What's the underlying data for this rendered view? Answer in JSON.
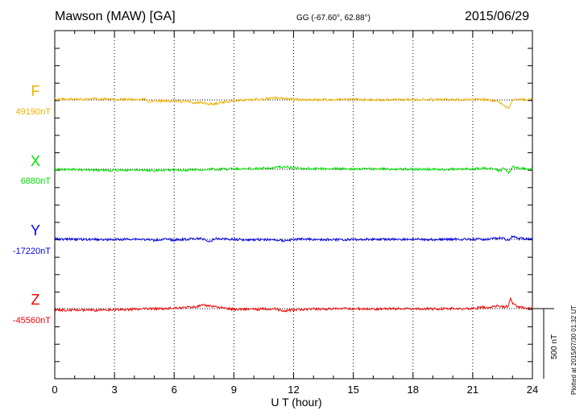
{
  "header": {
    "title": "Mawson (MAW)  [GA]",
    "coords": "GG (-67.60°,  62.88°)",
    "date": "2015/06/29",
    "plotted": "Plotted at 2015/07/30 01:32 UT"
  },
  "chart_data": {
    "type": "line",
    "title": "Mawson (MAW)  [GA]",
    "xlabel": "U T (hour)",
    "xlim": [
      0,
      24
    ],
    "xticks": [
      "0",
      "3",
      "6",
      "9",
      "12",
      "15",
      "18",
      "21",
      "24"
    ],
    "grid": "dotted vertical at each 3 hours",
    "scale_bar": {
      "label": "500 nT",
      "value_nT": 500
    },
    "series": [
      {
        "name": "F",
        "baseline_label": "49190nT",
        "baseline_nT": 49190,
        "color": "#f0b000",
        "x": [
          0,
          0.5,
          1,
          1.5,
          2,
          2.5,
          3,
          3.5,
          4,
          4.5,
          4.8,
          5,
          5.5,
          6,
          6.5,
          7,
          7.5,
          7.8,
          8,
          8.5,
          9,
          9.5,
          10,
          10.5,
          11,
          11.3,
          11.6,
          12,
          12.5,
          13,
          14,
          15,
          16,
          17,
          18,
          19,
          20,
          21,
          21.5,
          22,
          22.3,
          22.6,
          22.8,
          22.9,
          23,
          23.2,
          23.5,
          24
        ],
        "values": [
          10,
          12,
          12,
          10,
          18,
          10,
          8,
          8,
          5,
          10,
          -25,
          -20,
          -15,
          -20,
          -25,
          -35,
          -45,
          -60,
          -55,
          -30,
          -10,
          -5,
          5,
          15,
          25,
          35,
          20,
          5,
          3,
          5,
          3,
          5,
          3,
          5,
          5,
          3,
          5,
          5,
          5,
          -10,
          -30,
          -80,
          -120,
          -60,
          -10,
          5,
          5,
          3
        ]
      },
      {
        "name": "X",
        "baseline_label": "6880nT",
        "baseline_nT": 6880,
        "color": "#00e000",
        "x": [
          0,
          1,
          2,
          3,
          4,
          4.5,
          5,
          5.5,
          6,
          6.5,
          7,
          7.5,
          8,
          8.5,
          9,
          9.5,
          10,
          10.5,
          11,
          11.5,
          12,
          12.5,
          13,
          14,
          15,
          16,
          17,
          18,
          19,
          20,
          21,
          21.5,
          22,
          22.4,
          22.6,
          22.8,
          22.9,
          23,
          23.2,
          23.5,
          24
        ],
        "values": [
          0,
          -5,
          -15,
          -15,
          -10,
          -20,
          -20,
          -10,
          -10,
          -15,
          -5,
          -10,
          0,
          0,
          10,
          5,
          10,
          15,
          20,
          35,
          20,
          10,
          5,
          10,
          5,
          5,
          5,
          0,
          0,
          0,
          5,
          10,
          10,
          -20,
          20,
          -60,
          -30,
          40,
          20,
          10,
          5
        ]
      },
      {
        "name": "Y",
        "baseline_label": "-17220nT",
        "baseline_nT": -17220,
        "color": "#0000e0",
        "x": [
          0,
          1,
          2,
          3,
          4,
          5,
          5.5,
          6,
          6.5,
          7,
          7.5,
          7.8,
          8,
          8.5,
          9,
          9.5,
          10,
          10.5,
          11,
          11.5,
          11.8,
          12,
          12.5,
          13,
          14,
          15,
          16,
          17,
          18,
          19,
          20,
          21,
          21.5,
          22,
          22.5,
          22.8,
          23,
          23.3,
          23.6,
          24
        ],
        "values": [
          5,
          0,
          0,
          -5,
          5,
          -10,
          0,
          -10,
          0,
          10,
          5,
          -40,
          10,
          5,
          0,
          -5,
          -5,
          0,
          -10,
          -20,
          -10,
          -5,
          5,
          0,
          -5,
          -5,
          0,
          0,
          0,
          -5,
          0,
          0,
          0,
          10,
          20,
          -15,
          40,
          10,
          10,
          5
        ]
      },
      {
        "name": "Z",
        "baseline_label": "-45560nT",
        "baseline_nT": -45560,
        "color": "#f00000",
        "x": [
          0,
          1,
          2,
          3,
          4,
          5,
          5.5,
          6,
          6.5,
          7,
          7.5,
          8,
          8.5,
          9,
          9.5,
          10,
          10.5,
          11,
          11.5,
          12,
          12.5,
          13,
          14,
          15,
          16,
          17,
          18,
          19,
          20,
          21,
          21.5,
          21.8,
          22,
          22.3,
          22.6,
          22.8,
          22.9,
          23,
          23.3,
          23.6,
          24
        ],
        "values": [
          -20,
          -20,
          -25,
          -15,
          -10,
          0,
          -5,
          10,
          15,
          25,
          45,
          35,
          5,
          -10,
          -5,
          -10,
          -5,
          0,
          -30,
          -20,
          -10,
          -5,
          -5,
          0,
          -5,
          0,
          0,
          -5,
          0,
          0,
          20,
          5,
          30,
          40,
          20,
          40,
          160,
          80,
          20,
          10,
          5
        ]
      }
    ]
  }
}
